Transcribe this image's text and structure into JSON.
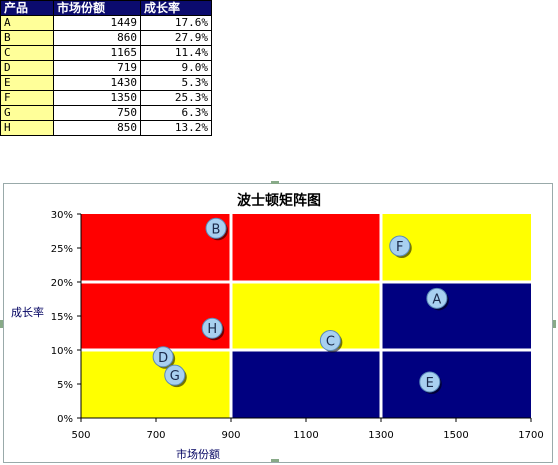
{
  "table": {
    "headers": [
      "产品",
      "市场份额",
      "成长率"
    ],
    "rows": [
      {
        "name": "A",
        "share": "1449",
        "growth": "17.6%"
      },
      {
        "name": "B",
        "share": "860",
        "growth": "27.9%"
      },
      {
        "name": "C",
        "share": "1165",
        "growth": "11.4%"
      },
      {
        "name": "D",
        "share": "719",
        "growth": "9.0%"
      },
      {
        "name": "E",
        "share": "1430",
        "growth": "5.3%"
      },
      {
        "name": "F",
        "share": "1350",
        "growth": "25.3%"
      },
      {
        "name": "G",
        "share": "750",
        "growth": "6.3%"
      },
      {
        "name": "H",
        "share": "850",
        "growth": "13.2%"
      }
    ]
  },
  "chart_data": {
    "type": "scatter",
    "title": "波士顿矩阵图",
    "xlabel": "市场份额",
    "ylabel": "成长率",
    "xlim": [
      500,
      1700
    ],
    "ylim": [
      0,
      30
    ],
    "x_ticks": [
      500,
      700,
      900,
      1100,
      1300,
      1500,
      1700
    ],
    "x_tick_labels": [
      "500",
      "700",
      "900",
      "1100",
      "1300",
      "1500",
      "1700"
    ],
    "y_ticks": [
      0,
      5,
      10,
      15,
      20,
      25,
      30
    ],
    "y_tick_labels": [
      "0%",
      "5%",
      "10%",
      "15%",
      "20%",
      "25%",
      "30%"
    ],
    "regions": [
      {
        "x": [
          500,
          900
        ],
        "y": [
          20,
          30
        ],
        "color": "#ff0000"
      },
      {
        "x": [
          900,
          1300
        ],
        "y": [
          20,
          30
        ],
        "color": "#ff0000"
      },
      {
        "x": [
          1300,
          1700
        ],
        "y": [
          20,
          30
        ],
        "color": "#ffff00"
      },
      {
        "x": [
          500,
          900
        ],
        "y": [
          10,
          20
        ],
        "color": "#ff0000"
      },
      {
        "x": [
          900,
          1300
        ],
        "y": [
          10,
          20
        ],
        "color": "#ffff00"
      },
      {
        "x": [
          1300,
          1700
        ],
        "y": [
          10,
          20
        ],
        "color": "#000080"
      },
      {
        "x": [
          500,
          900
        ],
        "y": [
          0,
          10
        ],
        "color": "#ffff00"
      },
      {
        "x": [
          900,
          1300
        ],
        "y": [
          0,
          10
        ],
        "color": "#000080"
      },
      {
        "x": [
          1300,
          1700
        ],
        "y": [
          0,
          10
        ],
        "color": "#000080"
      }
    ],
    "points": [
      {
        "label": "A",
        "x": 1449,
        "y": 17.6
      },
      {
        "label": "B",
        "x": 860,
        "y": 27.9
      },
      {
        "label": "C",
        "x": 1165,
        "y": 11.4
      },
      {
        "label": "D",
        "x": 719,
        "y": 9.0
      },
      {
        "label": "E",
        "x": 1430,
        "y": 5.3
      },
      {
        "label": "F",
        "x": 1350,
        "y": 25.3
      },
      {
        "label": "G",
        "x": 750,
        "y": 6.3
      },
      {
        "label": "H",
        "x": 850,
        "y": 13.2
      }
    ],
    "bubble_color": "#a8d0f0"
  }
}
